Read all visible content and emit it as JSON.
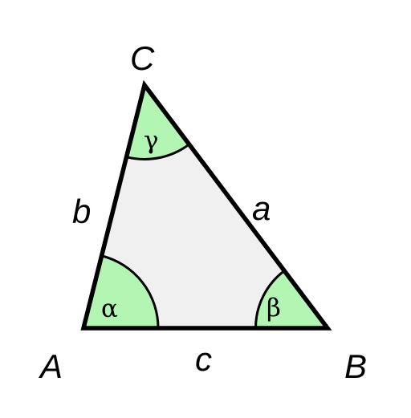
{
  "colors": {
    "triangle_fill": "#f0f0f0",
    "angle_fill": "#b3f5b3",
    "stroke": "#000000",
    "background": "#ffffff"
  },
  "vertices": {
    "A": "A",
    "B": "B",
    "C": "C"
  },
  "sides": {
    "a": "a",
    "b": "b",
    "c": "c"
  },
  "angles": {
    "alpha": "α",
    "beta": "β",
    "gamma": "γ"
  }
}
